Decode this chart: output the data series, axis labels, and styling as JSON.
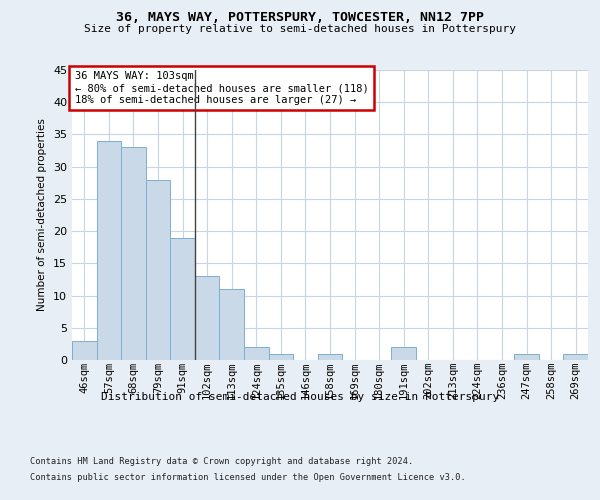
{
  "title1": "36, MAYS WAY, POTTERSPURY, TOWCESTER, NN12 7PP",
  "title2": "Size of property relative to semi-detached houses in Potterspury",
  "xlabel": "Distribution of semi-detached houses by size in Potterspury",
  "ylabel": "Number of semi-detached properties",
  "categories": [
    "46sqm",
    "57sqm",
    "68sqm",
    "79sqm",
    "91sqm",
    "102sqm",
    "113sqm",
    "124sqm",
    "135sqm",
    "146sqm",
    "158sqm",
    "169sqm",
    "180sqm",
    "191sqm",
    "202sqm",
    "213sqm",
    "224sqm",
    "236sqm",
    "247sqm",
    "258sqm",
    "269sqm"
  ],
  "values": [
    3,
    34,
    33,
    28,
    19,
    13,
    11,
    2,
    1,
    0,
    1,
    0,
    0,
    2,
    0,
    0,
    0,
    0,
    1,
    0,
    1
  ],
  "bar_color": "#c9d9e8",
  "bar_edge_color": "#7bafd4",
  "annotation_text": "36 MAYS WAY: 103sqm\n← 80% of semi-detached houses are smaller (118)\n18% of semi-detached houses are larger (27) →",
  "annotation_box_color": "#ffffff",
  "annotation_border_color": "#cc0000",
  "ylim": [
    0,
    45
  ],
  "yticks": [
    0,
    5,
    10,
    15,
    20,
    25,
    30,
    35,
    40,
    45
  ],
  "bg_color": "#e8eef5",
  "plot_bg_color": "#ffffff",
  "grid_color": "#c8d4e0",
  "footer1": "Contains HM Land Registry data © Crown copyright and database right 2024.",
  "footer2": "Contains public sector information licensed under the Open Government Licence v3.0."
}
